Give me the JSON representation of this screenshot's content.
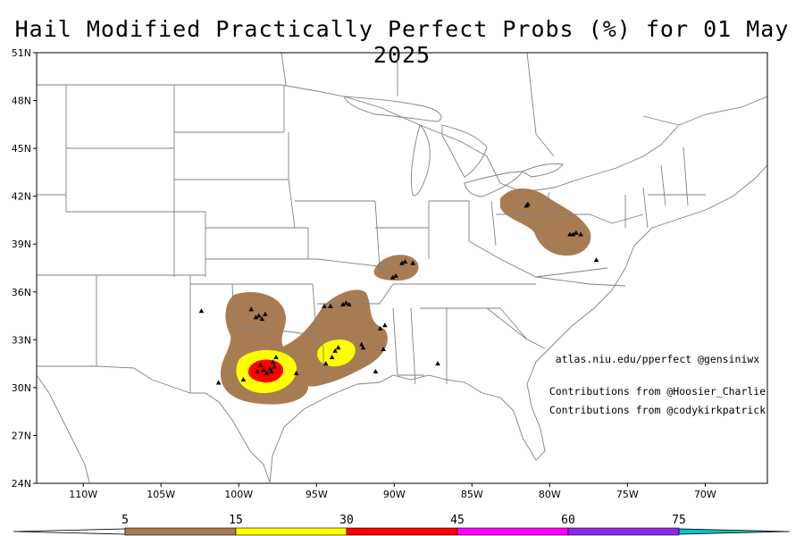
{
  "title": "Hail Modified Practically Perfect Probs (%) for 01 May 2025",
  "credits": {
    "site": "atlas.niu.edu/pperfect @gensiniwx",
    "line1": "Contributions from @Hoosier_Charlie",
    "line2": "Contributions from @codykirkpatrick"
  },
  "axes": {
    "lon_ticks": [
      "110W",
      "105W",
      "100W",
      "95W",
      "90W",
      "85W",
      "80W",
      "75W",
      "70W"
    ],
    "lat_ticks": [
      "51N",
      "48N",
      "45N",
      "42N",
      "39N",
      "36N",
      "33N",
      "30N",
      "27N",
      "24N"
    ]
  },
  "colorbar": {
    "labels": [
      "5",
      "15",
      "30",
      "45",
      "60",
      "75"
    ],
    "colors": [
      "#a87c52",
      "#ffff00",
      "#ff0000",
      "#ff00ff",
      "#8a2be2",
      "#00c8c8"
    ]
  },
  "colors": {
    "prob5": "#a87c52",
    "prob15": "#ffff00",
    "prob30": "#ff0000",
    "border": "#808080",
    "report": "#000000"
  },
  "map_extent": {
    "lon_min": -113,
    "lon_max": -66,
    "lat_min": 24,
    "lat_max": 51
  },
  "probability_areas": [
    {
      "level": 5,
      "name": "north-texas-oklahoma",
      "center_lon": -97.8,
      "center_lat": 32.3
    },
    {
      "level": 5,
      "name": "arkansas-louisiana",
      "center_lon": -93.0,
      "center_lat": 33.5
    },
    {
      "level": 5,
      "name": "southern-illinois",
      "center_lon": -89.2,
      "center_lat": 37.7
    },
    {
      "level": 5,
      "name": "pennsylvania-virginia",
      "center_lon": -79.8,
      "center_lat": 40.5
    },
    {
      "level": 15,
      "name": "central-texas",
      "center_lon": -98.2,
      "center_lat": 31.2
    },
    {
      "level": 15,
      "name": "northwest-louisiana",
      "center_lon": -93.8,
      "center_lat": 32.1
    },
    {
      "level": 30,
      "name": "central-texas-core",
      "center_lon": -98.2,
      "center_lat": 31.2
    }
  ],
  "hail_reports": [
    [
      -102.4,
      34.8
    ],
    [
      -99.2,
      34.9
    ],
    [
      -98.7,
      34.5
    ],
    [
      -98.3,
      34.6
    ],
    [
      -98.9,
      34.4
    ],
    [
      -98.5,
      34.3
    ],
    [
      -98.4,
      31.1
    ],
    [
      -98.2,
      30.9
    ],
    [
      -97.9,
      31.0
    ],
    [
      -97.7,
      31.3
    ],
    [
      -98.0,
      31.2
    ],
    [
      -98.6,
      31.4
    ],
    [
      -97.8,
      31.6
    ],
    [
      -97.6,
      31.9
    ],
    [
      -98.8,
      31.0
    ],
    [
      -99.7,
      30.5
    ],
    [
      -101.3,
      30.3
    ],
    [
      -96.3,
      30.9
    ],
    [
      -94.0,
      31.9
    ],
    [
      -93.8,
      32.3
    ],
    [
      -93.6,
      32.5
    ],
    [
      -94.4,
      31.5
    ],
    [
      -92.1,
      32.7
    ],
    [
      -92.0,
      32.5
    ],
    [
      -90.7,
      32.4
    ],
    [
      -91.2,
      31.0
    ],
    [
      -93.3,
      35.2
    ],
    [
      -93.1,
      35.3
    ],
    [
      -92.9,
      35.2
    ],
    [
      -94.5,
      35.1
    ],
    [
      -94.1,
      35.1
    ],
    [
      -90.9,
      33.7
    ],
    [
      -90.6,
      33.9
    ],
    [
      -87.2,
      31.5
    ],
    [
      -88.8,
      37.8
    ],
    [
      -89.3,
      37.9
    ],
    [
      -89.5,
      37.8
    ],
    [
      -90.1,
      36.9
    ],
    [
      -89.9,
      37.0
    ],
    [
      -81.5,
      41.4
    ],
    [
      -81.4,
      41.5
    ],
    [
      -78.7,
      39.6
    ],
    [
      -78.5,
      39.6
    ],
    [
      -78.3,
      39.7
    ],
    [
      -78.0,
      39.6
    ],
    [
      -77.0,
      38.0
    ]
  ]
}
